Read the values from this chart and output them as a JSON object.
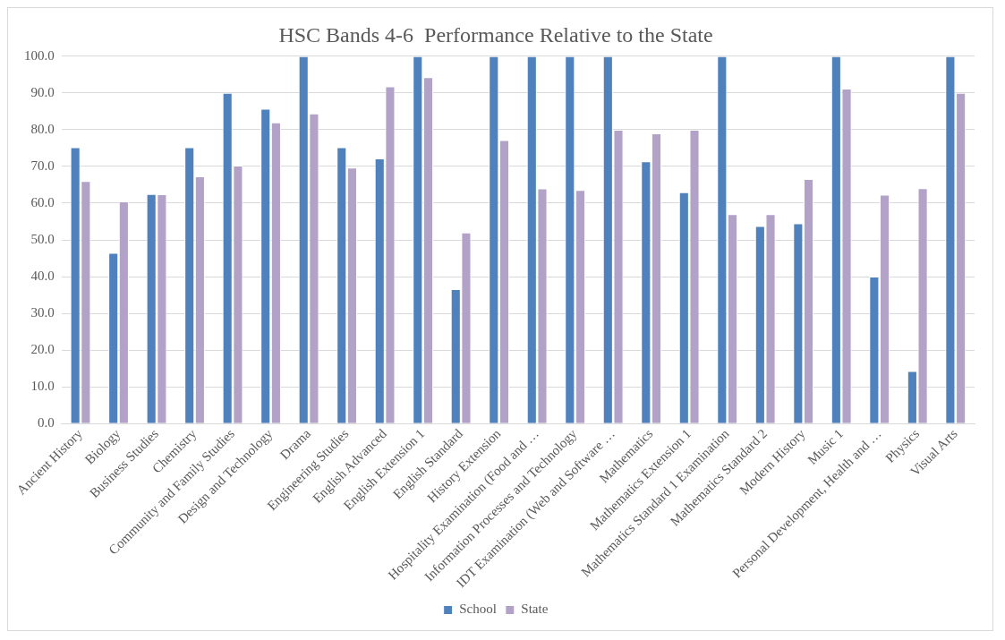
{
  "chart_data": {
    "type": "bar",
    "title": "HSC Bands 4-6  Performance Relative to the State",
    "categories": [
      "Ancient History",
      "Biology",
      "Business Studies",
      "Chemistry",
      "Community and Family Studies",
      "Design and Technology",
      "Drama",
      "Engineering Studies",
      "English Advanced",
      "English Extension 1",
      "English Standard",
      "History Extension",
      "Hospitality Examination (Food and …",
      "Information Processes and Technology",
      "IDT Examination (Web and Software …",
      "Mathematics",
      "Mathematics Extension 1",
      "Mathematics Standard 1 Examination",
      "Mathematics Standard 2",
      "Modern History",
      "Music 1",
      "Personal Development, Health and …",
      "Physics",
      "Visual Arts"
    ],
    "series": [
      {
        "name": "School",
        "color": "#4f81bd",
        "values": [
          75.2,
          46.5,
          62.5,
          75.2,
          90,
          85.7,
          100,
          75.2,
          72.2,
          100,
          36.6,
          100,
          100,
          100,
          100,
          71.4,
          63,
          100,
          53.8,
          54.5,
          100,
          40,
          14.3,
          100
        ]
      },
      {
        "name": "State",
        "color": "#b3a2c7",
        "values": [
          66,
          60.5,
          62.4,
          67.3,
          70.2,
          82,
          84.4,
          69.7,
          91.8,
          94.3,
          52,
          77.2,
          64,
          63.6,
          80,
          79,
          80,
          57,
          57,
          66.6,
          91.2,
          62.3,
          64.1,
          90
        ]
      }
    ],
    "ylim": [
      0,
      100
    ],
    "yticks": [
      {
        "value": 0,
        "label": "0.0"
      },
      {
        "value": 10,
        "label": "10.0"
      },
      {
        "value": 20,
        "label": "20.0"
      },
      {
        "value": 30,
        "label": "30.0"
      },
      {
        "value": 40,
        "label": "40.0"
      },
      {
        "value": 50,
        "label": "50.0"
      },
      {
        "value": 60,
        "label": "60.0"
      },
      {
        "value": 70,
        "label": "70.0"
      },
      {
        "value": 80,
        "label": "80.0"
      },
      {
        "value": 90,
        "label": "90.0"
      },
      {
        "value": 100,
        "label": "100.0"
      }
    ],
    "grid": "y",
    "legend": "bottom"
  }
}
